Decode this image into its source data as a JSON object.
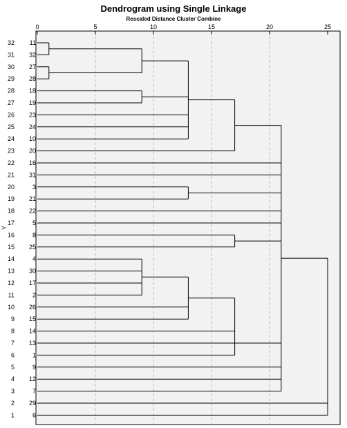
{
  "chart_data": {
    "type": "dendrogram",
    "title": "Dendrogram using Single Linkage",
    "subtitle": "Rescaled Distance Cluster Combine",
    "ylabel": "Y",
    "x_ticks": [
      0,
      5,
      10,
      15,
      20,
      25
    ],
    "xlim": [
      0,
      25
    ],
    "leaves": [
      {
        "pos": 32,
        "case": "11"
      },
      {
        "pos": 31,
        "case": "32"
      },
      {
        "pos": 30,
        "case": "27"
      },
      {
        "pos": 29,
        "case": "28"
      },
      {
        "pos": 28,
        "case": "18"
      },
      {
        "pos": 27,
        "case": "19"
      },
      {
        "pos": 26,
        "case": "23"
      },
      {
        "pos": 25,
        "case": "24"
      },
      {
        "pos": 24,
        "case": "10"
      },
      {
        "pos": 23,
        "case": "20"
      },
      {
        "pos": 22,
        "case": "16"
      },
      {
        "pos": 21,
        "case": "31"
      },
      {
        "pos": 20,
        "case": "3"
      },
      {
        "pos": 19,
        "case": "21"
      },
      {
        "pos": 18,
        "case": "22"
      },
      {
        "pos": 17,
        "case": "5"
      },
      {
        "pos": 16,
        "case": "8"
      },
      {
        "pos": 15,
        "case": "25"
      },
      {
        "pos": 14,
        "case": "4"
      },
      {
        "pos": 13,
        "case": "30"
      },
      {
        "pos": 12,
        "case": "17"
      },
      {
        "pos": 11,
        "case": "2"
      },
      {
        "pos": 10,
        "case": "26"
      },
      {
        "pos": 9,
        "case": "15"
      },
      {
        "pos": 8,
        "case": "14"
      },
      {
        "pos": 7,
        "case": "13"
      },
      {
        "pos": 6,
        "case": "1"
      },
      {
        "pos": 5,
        "case": "9"
      },
      {
        "pos": 4,
        "case": "12"
      },
      {
        "pos": 3,
        "case": "7"
      },
      {
        "pos": 2,
        "case": "29"
      },
      {
        "pos": 1,
        "case": "6"
      }
    ],
    "merges": [
      {
        "children": [
          [
            0
          ],
          [
            1
          ]
        ],
        "height": 1
      },
      {
        "children": [
          [
            2
          ],
          [
            3
          ]
        ],
        "height": 1
      },
      {
        "children": [
          [
            0
          ],
          [
            2
          ]
        ],
        "height": 9
      },
      {
        "children": [
          [
            4
          ],
          [
            5
          ]
        ],
        "height": 9
      },
      {
        "children": [
          [
            0
          ],
          [
            4
          ],
          [
            6
          ],
          [
            7
          ],
          [
            8
          ]
        ],
        "height": 13
      },
      {
        "children": [
          [
            0
          ],
          [
            9
          ]
        ],
        "height": 17
      },
      {
        "children": [
          [
            12
          ],
          [
            13
          ]
        ],
        "height": 13
      },
      {
        "children": [
          [
            16
          ],
          [
            17
          ]
        ],
        "height": 17
      },
      {
        "children": [
          [
            18
          ],
          [
            19
          ],
          [
            20
          ],
          [
            21
          ]
        ],
        "height": 9
      },
      {
        "children": [
          [
            18
          ],
          [
            22
          ],
          [
            23
          ]
        ],
        "height": 13
      },
      {
        "children": [
          [
            18
          ],
          [
            24
          ],
          [
            26
          ]
        ],
        "height": 17
      },
      {
        "children": [
          [
            0
          ],
          [
            10
          ],
          [
            11
          ],
          [
            12
          ],
          [
            14
          ],
          [
            15
          ],
          [
            16
          ],
          [
            25
          ],
          [
            28
          ],
          [
            27
          ],
          [
            29
          ]
        ],
        "height": 21
      },
      {
        "children": [
          [
            0
          ],
          [
            30
          ],
          [
            31
          ]
        ],
        "height": 25
      }
    ],
    "grid": "vertical-dashed"
  }
}
